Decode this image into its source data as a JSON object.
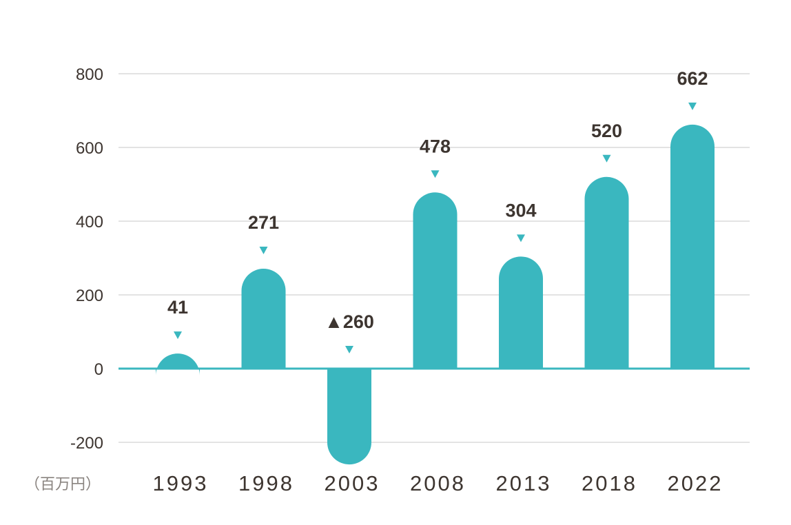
{
  "chart_data": {
    "type": "bar",
    "categories": [
      "1993",
      "1998",
      "2003",
      "2008",
      "2013",
      "2018",
      "2022"
    ],
    "values": [
      41,
      271,
      -260,
      478,
      304,
      520,
      662
    ],
    "data_labels": [
      "41",
      "271",
      "▲260",
      "478",
      "304",
      "520",
      "662"
    ],
    "unit_label": "（百万円）",
    "yticks": [
      800,
      600,
      400,
      200,
      0,
      -200
    ],
    "ylim": [
      -200,
      800
    ],
    "grid": true,
    "colors": {
      "bar": "#3ab7bf",
      "marker": "#3ab7bf",
      "grid": "#e3e3e3",
      "axis": "#3ab7bf",
      "text": "#3d3530"
    }
  }
}
